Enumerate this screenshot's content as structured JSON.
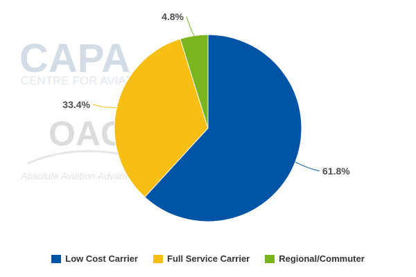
{
  "watermarks": {
    "capa_logo": "CAPA",
    "capa_subtitle": "CENTRE FOR AVIATION",
    "oag_logo": "OAG",
    "oag_tagline": "Absolute Aviation Advantage"
  },
  "chart_data": {
    "type": "pie",
    "title": "",
    "slices": [
      {
        "label": "Low Cost Carrier",
        "value": 61.8,
        "display": "61.8%",
        "color": "#0054a6"
      },
      {
        "label": "Full Service Carrier",
        "value": 33.4,
        "display": "33.4%",
        "color": "#f7be16"
      },
      {
        "label": "Regional/Commuter",
        "value": 4.8,
        "display": "4.8%",
        "color": "#7ab51d"
      }
    ],
    "start_angle_deg": 0,
    "direction": "clockwise",
    "legend_position": "bottom"
  }
}
